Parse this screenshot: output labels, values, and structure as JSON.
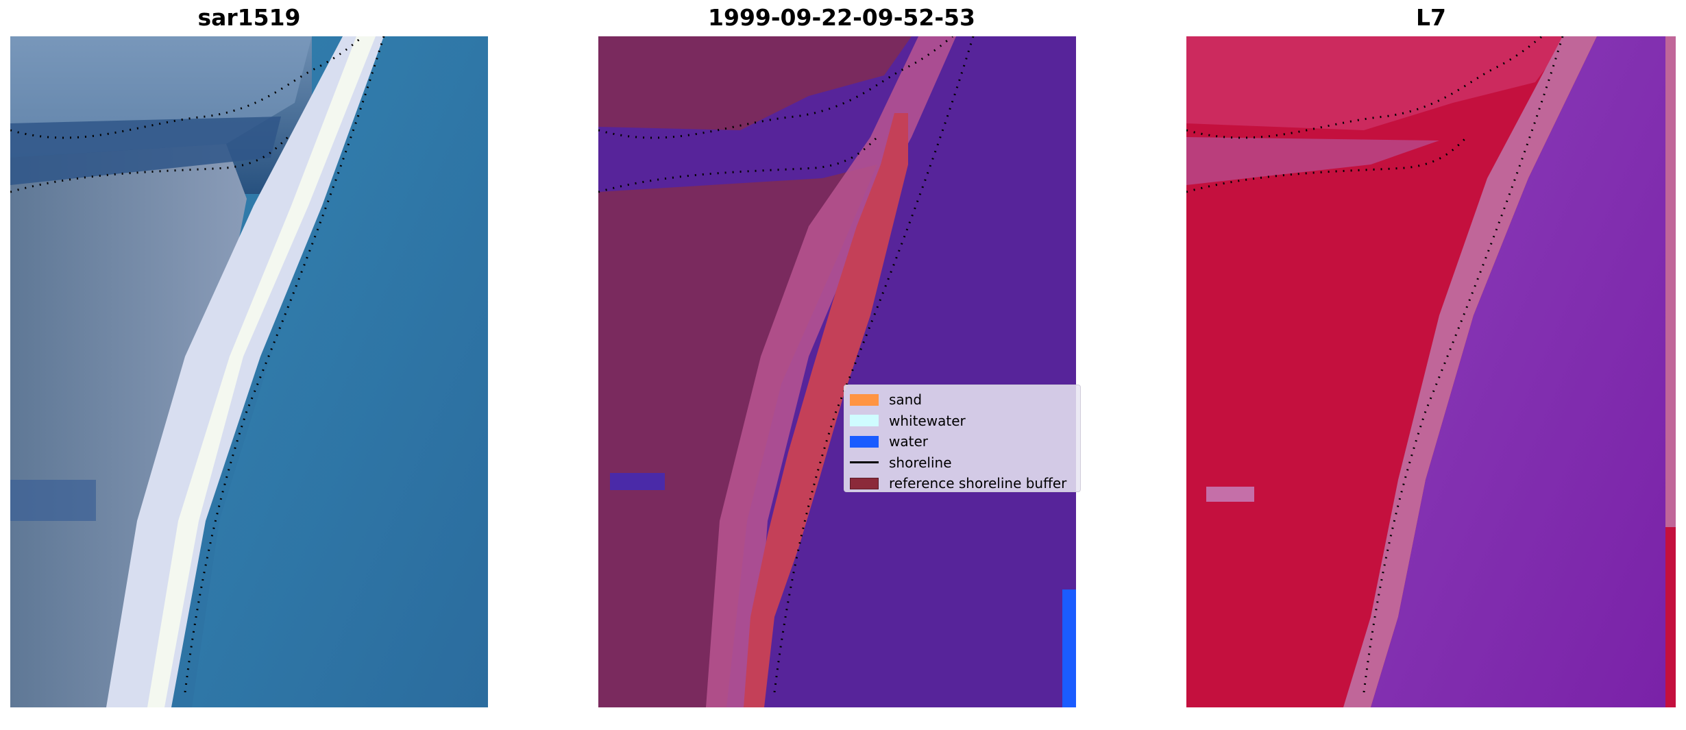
{
  "panels": [
    {
      "title": "sar1519"
    },
    {
      "title": "1999-09-22-09-52-53"
    },
    {
      "title": "L7"
    }
  ],
  "legend": {
    "items": [
      {
        "label": "sand",
        "color": "#ff9443"
      },
      {
        "label": "whitewater",
        "color": "#cffcff"
      },
      {
        "label": "water",
        "color": "#1a5cff"
      },
      {
        "label": "shoreline",
        "color": "#000000"
      },
      {
        "label": "reference shoreline buffer",
        "color": "#8b2a3a"
      }
    ]
  },
  "colors": {
    "water_class": "#57249a",
    "land_class": "#7a2a5e",
    "buffer": "#c44058",
    "index_high": "#c4103e",
    "index_low": "#7a22a8"
  }
}
